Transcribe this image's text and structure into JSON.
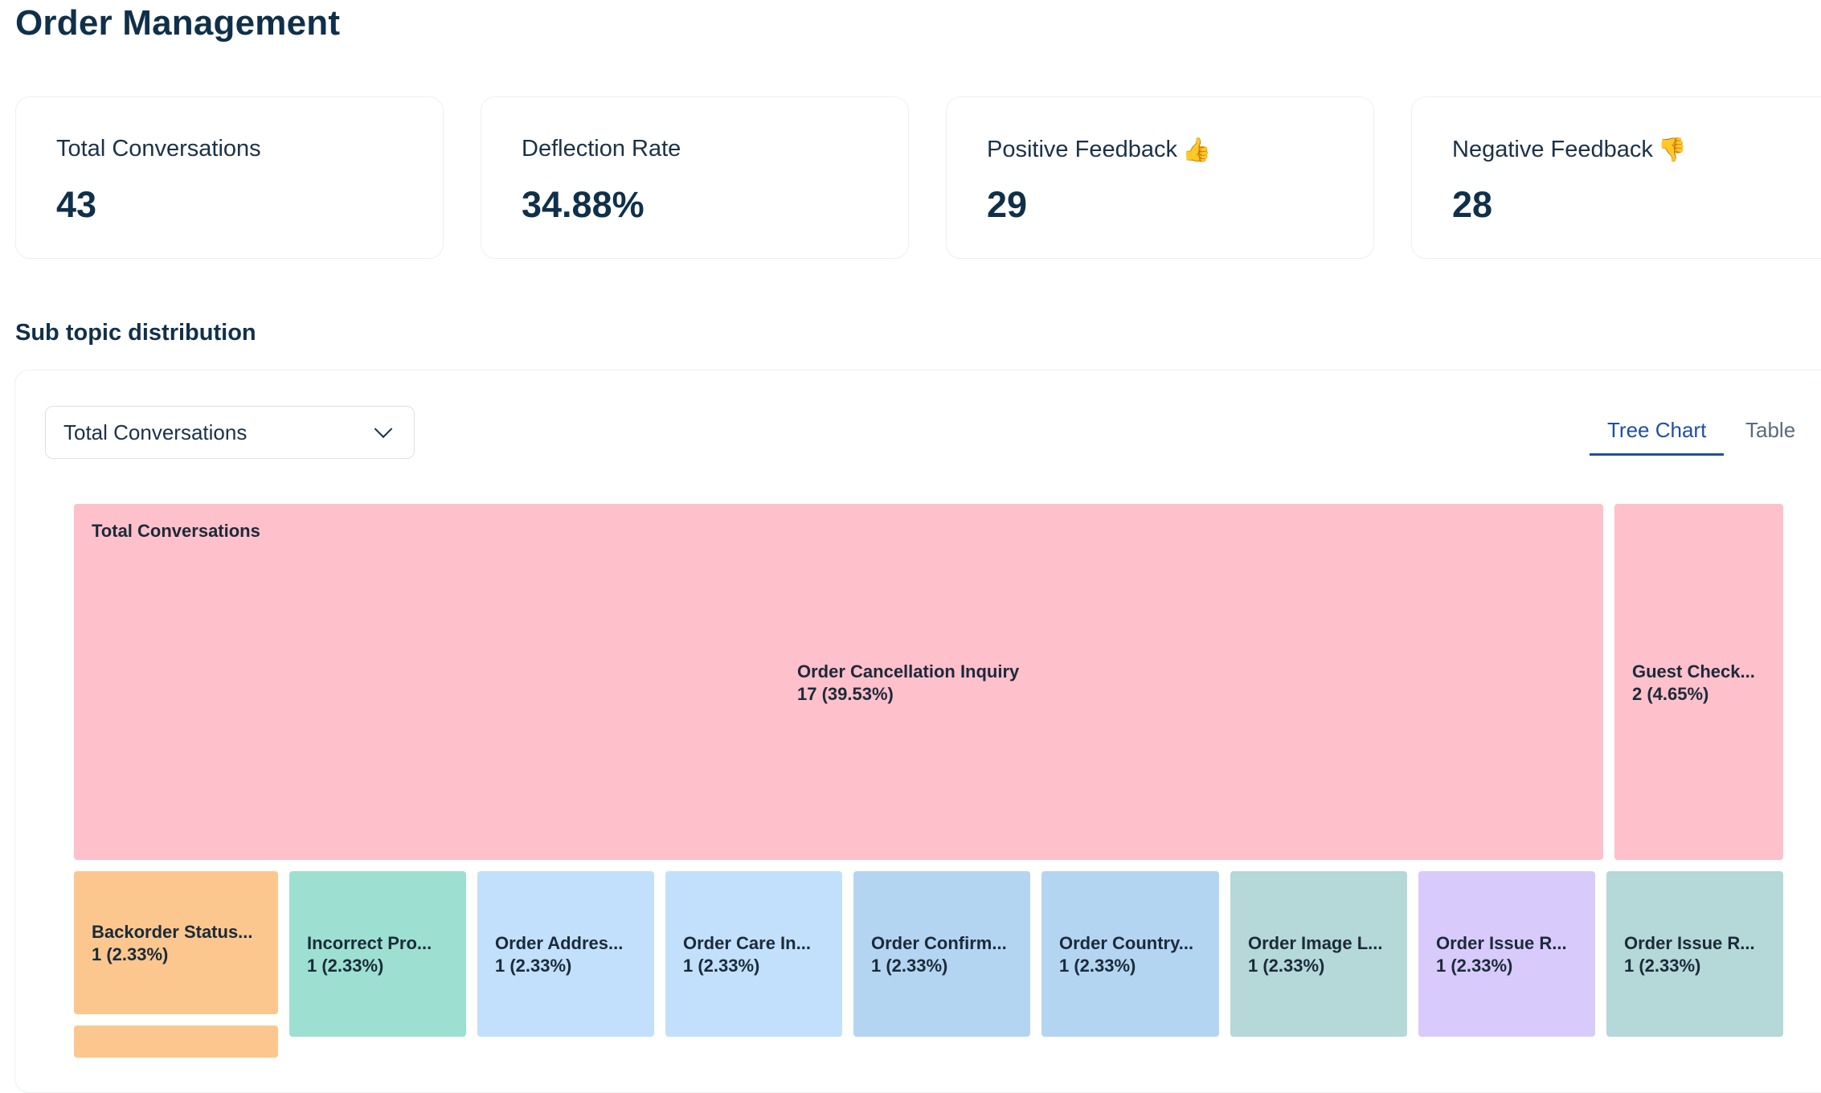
{
  "page": {
    "title": "Order Management"
  },
  "stats": [
    {
      "label": "Total Conversations",
      "value": "43",
      "emoji": ""
    },
    {
      "label": "Deflection Rate",
      "value": "34.88%",
      "emoji": ""
    },
    {
      "label": "Positive Feedback",
      "value": "29",
      "emoji": "👍"
    },
    {
      "label": "Negative Feedback",
      "value": "28",
      "emoji": "👎"
    }
  ],
  "section": {
    "title": "Sub topic distribution"
  },
  "controls": {
    "metric_select_value": "Total Conversations",
    "tabs": [
      {
        "label": "Tree Chart",
        "active": true
      },
      {
        "label": "Table",
        "active": false
      }
    ]
  },
  "chart_data": {
    "type": "treemap",
    "root_label": "Total Conversations",
    "total": 43,
    "nodes": [
      {
        "label": "Order Cancellation Inquiry",
        "value": 17,
        "value_label": "17 (39.53%)",
        "color": "#fec0ca"
      },
      {
        "label": "Guest Check...",
        "value": 2,
        "value_label": "2 (4.65%)",
        "color": "#fec0ca"
      },
      {
        "label": "Backorder Status...",
        "value": 1,
        "value_label": "1 (2.33%)",
        "color": "#fbc78e"
      },
      {
        "label": "",
        "value": 1,
        "value_label": "",
        "color": "#fbc78e"
      },
      {
        "label": "Incorrect Pro...",
        "value": 1,
        "value_label": "1 (2.33%)",
        "color": "#9de0d1"
      },
      {
        "label": "Order Addres...",
        "value": 1,
        "value_label": "1 (2.33%)",
        "color": "#c2e0fb"
      },
      {
        "label": "Order Care In...",
        "value": 1,
        "value_label": "1 (2.33%)",
        "color": "#c2e0fb"
      },
      {
        "label": "Order Confirm...",
        "value": 1,
        "value_label": "1 (2.33%)",
        "color": "#b4d5f2"
      },
      {
        "label": "Order Country...",
        "value": 1,
        "value_label": "1 (2.33%)",
        "color": "#b4d5f2"
      },
      {
        "label": "Order Image L...",
        "value": 1,
        "value_label": "1 (2.33%)",
        "color": "#b5d8d9"
      },
      {
        "label": "Order Issue R...",
        "value": 1,
        "value_label": "1 (2.33%)",
        "color": "#d8cbfb"
      },
      {
        "label": "Order Issue R...",
        "value": 1,
        "value_label": "1 (2.33%)",
        "color": "#b5d8d9"
      }
    ]
  }
}
